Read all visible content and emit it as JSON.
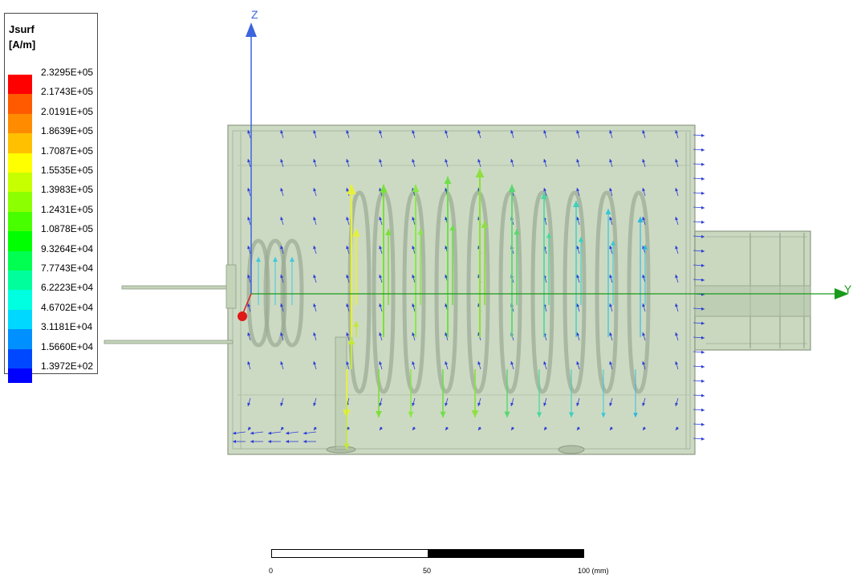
{
  "legend": {
    "title": "Jsurf",
    "unit": "[A/m]",
    "entries": [
      {
        "label": "2.3295E+05",
        "color": "#ff0000"
      },
      {
        "label": "2.1743E+05",
        "color": "#ff5a00"
      },
      {
        "label": "2.0191E+05",
        "color": "#ff8c00"
      },
      {
        "label": "1.8639E+05",
        "color": "#ffc000"
      },
      {
        "label": "1.7087E+05",
        "color": "#ffff00"
      },
      {
        "label": "1.5535E+05",
        "color": "#c8ff00"
      },
      {
        "label": "1.3983E+05",
        "color": "#8cff00"
      },
      {
        "label": "1.2431E+05",
        "color": "#48ff00"
      },
      {
        "label": "1.0878E+05",
        "color": "#00ff00"
      },
      {
        "label": "9.3264E+04",
        "color": "#00ff50"
      },
      {
        "label": "7.7743E+04",
        "color": "#00ff9c"
      },
      {
        "label": "6.2223E+04",
        "color": "#00ffe0"
      },
      {
        "label": "4.6702E+04",
        "color": "#00d8ff"
      },
      {
        "label": "3.1181E+04",
        "color": "#0090ff"
      },
      {
        "label": "1.5660E+04",
        "color": "#0048ff"
      },
      {
        "label": "1.3972E+02",
        "color": "#0000ff"
      }
    ]
  },
  "axes": {
    "z_label": "Z",
    "y_label": "Y",
    "z_color": "#3c64dc",
    "y_color": "#1a9a1a"
  },
  "scale_bar": {
    "ticks": [
      "0",
      "50",
      "100 (mm)"
    ]
  },
  "colors": {
    "body_fill": "#c4d4b9",
    "body_stroke": "#8c9a84",
    "coil": "#9aaa94",
    "arrow_blue": "#2a3cd8"
  }
}
